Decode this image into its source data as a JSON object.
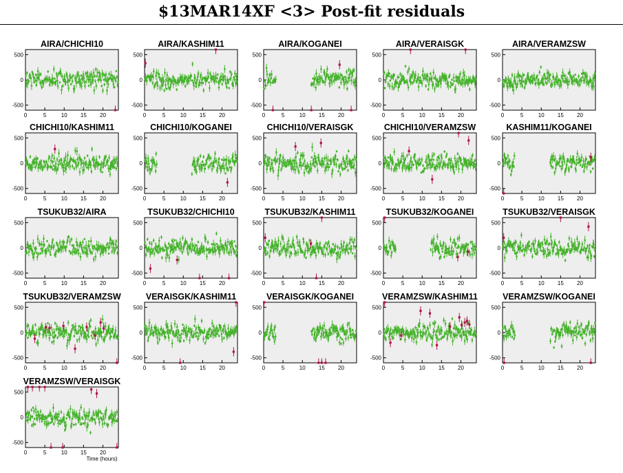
{
  "page": {
    "title": "$13MAR14XF <3> Post-fit residuals"
  },
  "colors": {
    "plot_bg": "#eeeeee",
    "good_points": "#44b22a",
    "flagged_points": "#b01447",
    "frame": "#000000"
  },
  "axes": {
    "xlabel": "Time (hours)",
    "xlim": [
      0,
      24
    ],
    "ylim": [
      -600,
      600
    ],
    "yticks": [
      500,
      0,
      -500
    ],
    "xticks": [
      0,
      5,
      10,
      15,
      20
    ]
  },
  "chart_data": {
    "type": "scatter",
    "panels": [
      {
        "name": "AIRA/CHICHI10",
        "gaps": [],
        "flagged": [
          [
            23.2,
            -600
          ]
        ]
      },
      {
        "name": "AIRA/KASHIM11",
        "gaps": [],
        "flagged": [
          [
            0.2,
            330
          ],
          [
            18.4,
            600
          ]
        ]
      },
      {
        "name": "AIRA/KOGANEI",
        "gaps": [
          [
            3.2,
            12.2
          ]
        ],
        "flagged": [
          [
            2.4,
            -600
          ],
          [
            12.3,
            -600
          ],
          [
            19.6,
            300
          ],
          [
            22.6,
            -600
          ]
        ]
      },
      {
        "name": "AIRA/VERAISGK",
        "gaps": [],
        "flagged": [
          [
            7.0,
            600
          ],
          [
            21.2,
            600
          ]
        ]
      },
      {
        "name": "AIRA/VERAMZSW",
        "gaps": [],
        "flagged": []
      },
      {
        "name": "CHICHI10/KASHIM11",
        "gaps": [],
        "flagged": [
          [
            7.6,
            280
          ]
        ]
      },
      {
        "name": "CHICHI10/KOGANEI",
        "gaps": [
          [
            3.2,
            12.2
          ]
        ],
        "flagged": [
          [
            21.4,
            -380
          ]
        ]
      },
      {
        "name": "CHICHI10/VERAISGK",
        "gaps": [],
        "flagged": [
          [
            8.2,
            330
          ],
          [
            14.8,
            400
          ]
        ]
      },
      {
        "name": "CHICHI10/VERAMZSW",
        "gaps": [],
        "flagged": [
          [
            6.6,
            240
          ],
          [
            12.6,
            -320
          ],
          [
            19.4,
            600
          ],
          [
            22.0,
            450
          ]
        ]
      },
      {
        "name": "KASHIM11/KOGANEI",
        "gaps": [
          [
            3.2,
            12.2
          ]
        ],
        "flagged": [
          [
            0.3,
            -600
          ],
          [
            22.8,
            120
          ]
        ]
      },
      {
        "name": "TSUKUB32/AIRA",
        "gaps": [],
        "flagged": []
      },
      {
        "name": "TSUKUB32/CHICHI10",
        "gaps": [],
        "flagged": [
          [
            1.5,
            -410
          ],
          [
            8.4,
            -240
          ],
          [
            14.2,
            -600
          ],
          [
            21.8,
            -600
          ]
        ]
      },
      {
        "name": "TSUKUB32/KASHIM11",
        "gaps": [],
        "flagged": [
          [
            0.4,
            200
          ],
          [
            12.2,
            80
          ],
          [
            13.6,
            -600
          ],
          [
            15.0,
            600
          ]
        ]
      },
      {
        "name": "TSUKUB32/KOGANEI",
        "gaps": [
          [
            3.2,
            12.2
          ]
        ],
        "flagged": [
          [
            0.3,
            600
          ],
          [
            19.2,
            -180
          ],
          [
            21.8,
            -80
          ]
        ]
      },
      {
        "name": "TSUKUB32/VERAISGK",
        "gaps": [],
        "flagged": [
          [
            0.3,
            200
          ],
          [
            15.0,
            600
          ],
          [
            22.2,
            420
          ]
        ]
      },
      {
        "name": "TSUKUB32/VERAMZSW",
        "gaps": [],
        "flagged": [
          [
            2.4,
            -120
          ],
          [
            5.2,
            100
          ],
          [
            6.2,
            90
          ],
          [
            9.8,
            130
          ],
          [
            12.8,
            -320
          ],
          [
            15.8,
            110
          ],
          [
            18.0,
            -60
          ],
          [
            19.4,
            200
          ],
          [
            20.2,
            80
          ],
          [
            23.6,
            -600
          ]
        ]
      },
      {
        "name": "VERAISGK/KASHIM11",
        "gaps": [],
        "flagged": [
          [
            9.2,
            -600
          ],
          [
            23.0,
            -380
          ],
          [
            23.6,
            600
          ]
        ]
      },
      {
        "name": "VERAISGK/KOGANEI",
        "gaps": [
          [
            3.2,
            12.2
          ]
        ],
        "flagged": [
          [
            0.1,
            600
          ],
          [
            14.2,
            -600
          ],
          [
            15.0,
            -600
          ],
          [
            16.0,
            -600
          ]
        ]
      },
      {
        "name": "VERAMZSW/KASHIM11",
        "gaps": [],
        "flagged": [
          [
            0.3,
            600
          ],
          [
            1.8,
            -200
          ],
          [
            4.6,
            -60
          ],
          [
            9.6,
            430
          ],
          [
            12.0,
            380
          ],
          [
            13.8,
            -250
          ],
          [
            17.2,
            120
          ],
          [
            19.6,
            300
          ],
          [
            20.2,
            150
          ],
          [
            21.0,
            200
          ],
          [
            21.6,
            230
          ],
          [
            22.2,
            160
          ]
        ]
      },
      {
        "name": "VERAMZSW/KOGANEI",
        "gaps": [
          [
            3.2,
            12.2
          ]
        ],
        "flagged": [
          [
            0.4,
            -600
          ],
          [
            22.8,
            -600
          ]
        ]
      },
      {
        "name": "VERAMZSW/VERAISGK",
        "gaps": [],
        "flagged": [
          [
            0.6,
            600
          ],
          [
            1.8,
            600
          ],
          [
            3.6,
            600
          ],
          [
            5.0,
            600
          ],
          [
            6.6,
            -600
          ],
          [
            9.6,
            -600
          ],
          [
            17.0,
            550
          ],
          [
            18.4,
            470
          ],
          [
            23.6,
            -600
          ]
        ],
        "xlabel": true
      }
    ]
  }
}
